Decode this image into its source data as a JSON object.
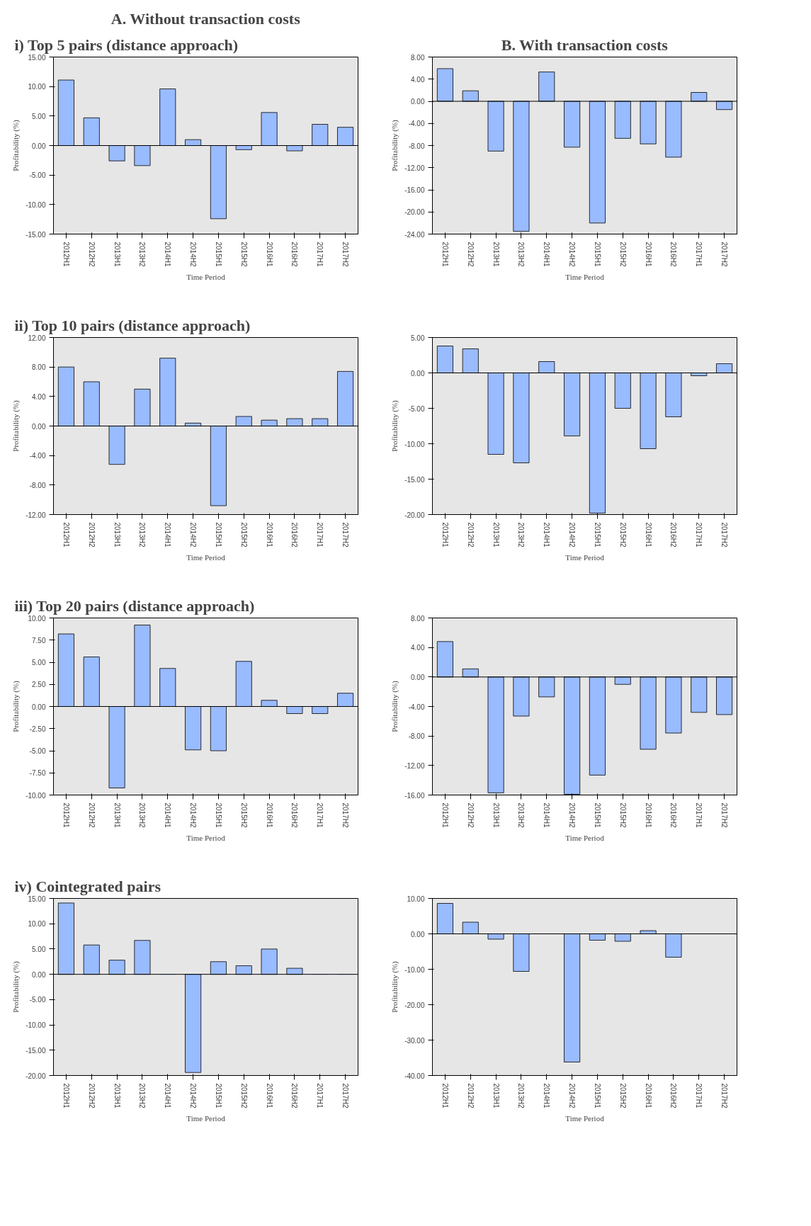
{
  "chart_data": [
    {
      "type": "bar",
      "title": "A. Without transaction costs",
      "subtitle": "i) Top 5 pairs (distance approach)",
      "xlabel": "Time Period",
      "ylabel": "Profitability (%)",
      "color": "#99bbff",
      "categories": [
        "2012H1",
        "2012H2",
        "2013H1",
        "2013H2",
        "2014H1",
        "2014H2",
        "2015H1",
        "2015H2",
        "2016H1",
        "2016H2",
        "2017H1",
        "2017H2"
      ],
      "values": [
        11.1,
        4.7,
        -2.6,
        -3.4,
        9.6,
        1.0,
        -12.4,
        -0.7,
        5.6,
        -0.9,
        3.6,
        3.1
      ],
      "ylim": [
        -15,
        15
      ],
      "yticks": [
        {
          "value": -15,
          "label": "-15.00"
        },
        {
          "value": -10,
          "label": "-10.00"
        },
        {
          "value": -5,
          "label": "-5.00"
        },
        {
          "value": 0,
          "label": "0.00"
        },
        {
          "value": 5,
          "label": "5.00"
        },
        {
          "value": 10,
          "label": "10.00"
        },
        {
          "value": 15,
          "label": "15.00"
        }
      ]
    },
    {
      "type": "bar",
      "title": "B. With transaction costs",
      "xlabel": "Time Period",
      "ylabel": "Profitability (%)",
      "color": "#99bbff",
      "categories": [
        "2012H1",
        "2012H2",
        "2013H1",
        "2013H2",
        "2014H1",
        "2014H2",
        "2015H1",
        "2015H2",
        "2016H1",
        "2016H2",
        "2017H1",
        "2017H2"
      ],
      "values": [
        5.9,
        1.9,
        -9.0,
        -23.5,
        5.3,
        -8.3,
        -22.0,
        -6.7,
        -7.7,
        -10.1,
        1.6,
        -1.5
      ],
      "ylim": [
        -24,
        8
      ],
      "yticks": [
        {
          "value": -24,
          "label": "-24.00"
        },
        {
          "value": -20,
          "label": "-20.00"
        },
        {
          "value": -16,
          "label": "-16.00"
        },
        {
          "value": -12,
          "label": "-12.00"
        },
        {
          "value": -8,
          "label": "-8.00"
        },
        {
          "value": -4,
          "label": "-4.00"
        },
        {
          "value": 0,
          "label": "0.00"
        },
        {
          "value": 4,
          "label": "4.00"
        },
        {
          "value": 8,
          "label": "8.00"
        }
      ]
    },
    {
      "type": "bar",
      "title": "ii) Top 10 pairs (distance approach)",
      "xlabel": "Time Period",
      "ylabel": "Profitability (%)",
      "color": "#99bbff",
      "categories": [
        "2012H1",
        "2012H2",
        "2013H1",
        "2013H2",
        "2014H1",
        "2014H2",
        "2015H1",
        "2015H2",
        "2016H1",
        "2016H2",
        "2017H1",
        "2017H2"
      ],
      "values": [
        8.0,
        6.0,
        -5.2,
        5.0,
        9.2,
        0.4,
        -10.8,
        1.3,
        0.8,
        1.0,
        1.0,
        7.4
      ],
      "ylim": [
        -12,
        12
      ],
      "yticks": [
        {
          "value": -12,
          "label": "-12.00"
        },
        {
          "value": -8,
          "label": "-8.00"
        },
        {
          "value": -4,
          "label": "-4.00"
        },
        {
          "value": 0,
          "label": "0.00"
        },
        {
          "value": 4,
          "label": "4.00"
        },
        {
          "value": 8,
          "label": "8.00"
        },
        {
          "value": 12,
          "label": "12.00"
        }
      ]
    },
    {
      "type": "bar",
      "xlabel": "Time Period",
      "ylabel": "Profitability (%)",
      "color": "#99bbff",
      "categories": [
        "2012H1",
        "2012H2",
        "2013H1",
        "2013H2",
        "2014H1",
        "2014H2",
        "2015H1",
        "2015H2",
        "2016H1",
        "2016H2",
        "2017H1",
        "2017H2"
      ],
      "values": [
        3.8,
        3.4,
        -11.5,
        -12.7,
        1.6,
        -8.9,
        -19.8,
        -5.0,
        -10.7,
        -6.2,
        -0.4,
        1.3
      ],
      "ylim": [
        -20,
        5
      ],
      "yticks": [
        {
          "value": -20,
          "label": "-20.00"
        },
        {
          "value": -15,
          "label": "-15.00"
        },
        {
          "value": -10,
          "label": "-10.00"
        },
        {
          "value": -5,
          "label": "-5.00"
        },
        {
          "value": 0,
          "label": "0.00"
        },
        {
          "value": 5,
          "label": "5.00"
        }
      ]
    },
    {
      "type": "bar",
      "title": "iii) Top 20 pairs (distance approach)",
      "xlabel": "Time Period",
      "ylabel": "Profitability (%)",
      "color": "#99bbff",
      "categories": [
        "2012H1",
        "2012H2",
        "2013H1",
        "2013H2",
        "2014H1",
        "2014H2",
        "2015H1",
        "2015H2",
        "2016H1",
        "2016H2",
        "2017H1",
        "2017H2"
      ],
      "values": [
        8.2,
        5.6,
        -9.2,
        9.2,
        4.3,
        -4.9,
        -5.0,
        5.1,
        0.7,
        -0.8,
        -0.8,
        1.5
      ],
      "ylim": [
        -10,
        10
      ],
      "yticks": [
        {
          "value": -10,
          "label": "-10.00"
        },
        {
          "value": -7.5,
          "label": "-7.50"
        },
        {
          "value": -5,
          "label": "-5.00"
        },
        {
          "value": -2.5,
          "label": "-2.50"
        },
        {
          "value": 0,
          "label": "0.00"
        },
        {
          "value": 2.5,
          "label": "2.50"
        },
        {
          "value": 5,
          "label": "5.00"
        },
        {
          "value": 7.5,
          "label": "7.50"
        },
        {
          "value": 10,
          "label": "10.00"
        }
      ]
    },
    {
      "type": "bar",
      "xlabel": "Time Period",
      "ylabel": "Profitability (%)",
      "color": "#99bbff",
      "categories": [
        "2012H1",
        "2012H2",
        "2013H1",
        "2013H2",
        "2014H1",
        "2014H2",
        "2015H1",
        "2015H2",
        "2016H1",
        "2016H2",
        "2017H1",
        "2017H2"
      ],
      "values": [
        4.8,
        1.1,
        -15.7,
        -5.3,
        -2.7,
        -15.9,
        -13.3,
        -1.0,
        -9.8,
        -7.6,
        -4.8,
        -5.1
      ],
      "ylim": [
        -16,
        8
      ],
      "yticks": [
        {
          "value": -16,
          "label": "-16.00"
        },
        {
          "value": -12,
          "label": "-12.00"
        },
        {
          "value": -8,
          "label": "-8.00"
        },
        {
          "value": -4,
          "label": "-4.00"
        },
        {
          "value": 0,
          "label": "0.00"
        },
        {
          "value": 4,
          "label": "4.00"
        },
        {
          "value": 8,
          "label": "8.00"
        }
      ]
    },
    {
      "type": "bar",
      "title": "iv) Cointegrated pairs",
      "xlabel": "Time Period",
      "ylabel": "Profitability (%)",
      "color": "#99bbff",
      "categories": [
        "2012H1",
        "2012H2",
        "2013H1",
        "2013H2",
        "2014H1",
        "2014H2",
        "2015H1",
        "2015H2",
        "2016H1",
        "2016H2",
        "2017H1",
        "2017H2"
      ],
      "values": [
        14.1,
        5.8,
        2.8,
        6.7,
        0,
        -19.4,
        2.5,
        1.7,
        5.0,
        1.2,
        0,
        0
      ],
      "ylim": [
        -20,
        15
      ],
      "yticks": [
        {
          "value": -20,
          "label": "-20.00"
        },
        {
          "value": -15,
          "label": "-15.00"
        },
        {
          "value": -10,
          "label": "-10.00"
        },
        {
          "value": -5,
          "label": "-5.00"
        },
        {
          "value": 0,
          "label": "0.00"
        },
        {
          "value": 5,
          "label": "5.00"
        },
        {
          "value": 10,
          "label": "10.00"
        },
        {
          "value": 15,
          "label": "15.00"
        }
      ]
    },
    {
      "type": "bar",
      "xlabel": "Time Period",
      "ylabel": "Profitability (%)",
      "color": "#99bbff",
      "categories": [
        "2012H1",
        "2012H2",
        "2013H1",
        "2013H2",
        "2014H1",
        "2014H2",
        "2015H1",
        "2015H2",
        "2016H1",
        "2016H2",
        "2017H1",
        "2017H2"
      ],
      "values": [
        8.6,
        3.3,
        -1.5,
        -10.6,
        0,
        -36.2,
        -1.8,
        -2.1,
        0.9,
        -6.6,
        0,
        0
      ],
      "ylim": [
        -40,
        10
      ],
      "yticks": [
        {
          "value": -40,
          "label": "-40.00"
        },
        {
          "value": -30,
          "label": "-30.00"
        },
        {
          "value": -20,
          "label": "-20.00"
        },
        {
          "value": -10,
          "label": "-10.00"
        },
        {
          "value": 0,
          "label": "0.00"
        },
        {
          "value": 10,
          "label": "10.00"
        }
      ]
    }
  ]
}
